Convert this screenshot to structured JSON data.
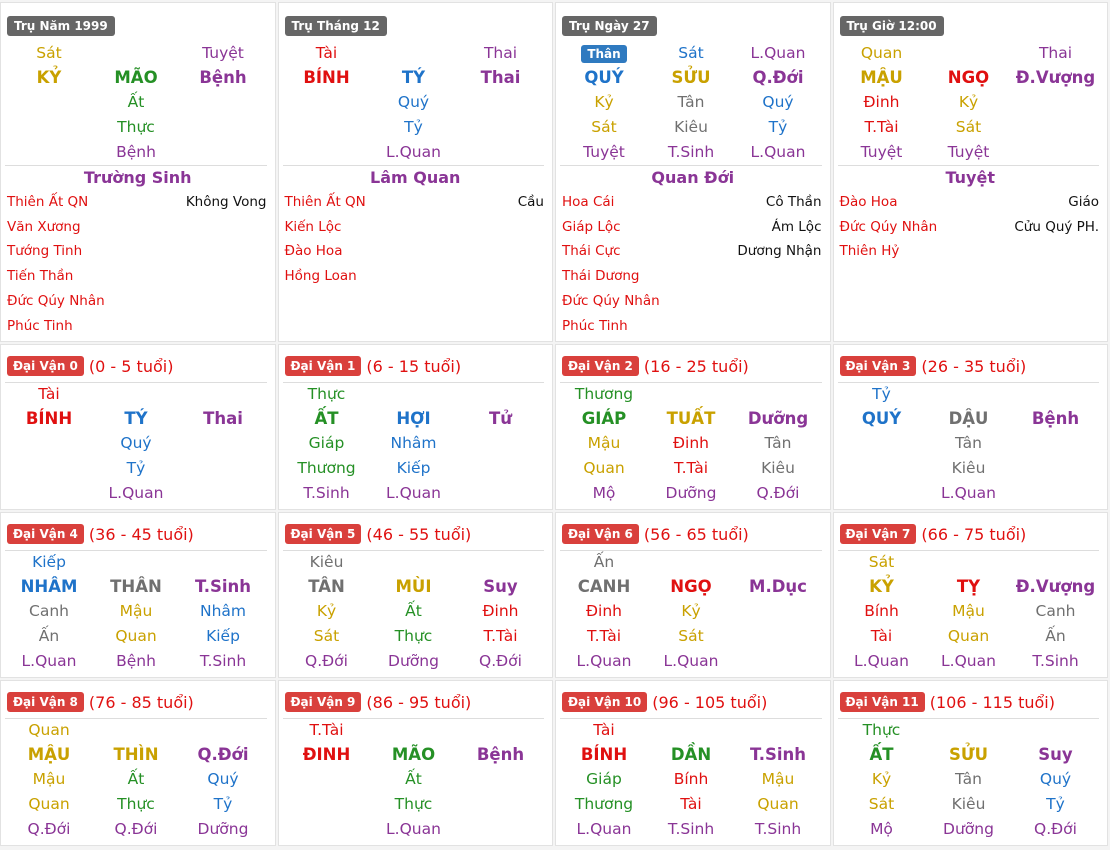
{
  "pillars": [
    {
      "label": "Trụ Năm 1999",
      "rows": [
        [
          {
            "t": "Sát",
            "c": "gold"
          },
          null,
          {
            "t": "Tuyệt",
            "c": "purple"
          }
        ],
        [
          {
            "t": "KỶ",
            "c": "gold"
          },
          {
            "t": "MÃO",
            "c": "green"
          },
          {
            "t": "Bệnh",
            "c": "purple"
          }
        ],
        [
          null,
          {
            "t": "Ất",
            "c": "green"
          },
          null
        ],
        [
          null,
          {
            "t": "Thực",
            "c": "green"
          },
          null
        ],
        [
          null,
          {
            "t": "Bệnh",
            "c": "purple"
          },
          null
        ]
      ],
      "stage": "Trường Sinh",
      "stars_left": [
        "Thiên Ất QN",
        "Văn Xương",
        "Tướng Tinh",
        "Tiến Thần",
        "Đức Qúy Nhân",
        "Phúc Tinh"
      ],
      "stars_right": [
        "Không Vong"
      ]
    },
    {
      "label": "Trụ Tháng 12",
      "rows": [
        [
          {
            "t": "Tài",
            "c": "red"
          },
          null,
          {
            "t": "Thai",
            "c": "purple"
          }
        ],
        [
          {
            "t": "BÍNH",
            "c": "red"
          },
          {
            "t": "TÝ",
            "c": "blue"
          },
          {
            "t": "Thai",
            "c": "purple"
          }
        ],
        [
          null,
          {
            "t": "Quý",
            "c": "blue"
          },
          null
        ],
        [
          null,
          {
            "t": "Tỷ",
            "c": "blue"
          },
          null
        ],
        [
          null,
          {
            "t": "L.Quan",
            "c": "purple"
          },
          null
        ]
      ],
      "stage": "Lâm Quan",
      "stars_left": [
        "Thiên Ất QN",
        "Kiến Lộc",
        "Đào Hoa",
        "Hồng Loan"
      ],
      "stars_right": [
        "Cầu"
      ]
    },
    {
      "label": "Trụ Ngày 27",
      "rows": [
        [
          {
            "t": "Thân",
            "c": "badge"
          },
          {
            "t": "Sát",
            "c": "blue"
          },
          {
            "t": "L.Quan",
            "c": "purple"
          }
        ],
        [
          {
            "t": "QUÝ",
            "c": "blue"
          },
          {
            "t": "SỬU",
            "c": "gold"
          },
          {
            "t": "Q.Đới",
            "c": "purple"
          }
        ],
        [
          {
            "t": "Kỷ",
            "c": "gold"
          },
          {
            "t": "Tân",
            "c": "gray"
          },
          {
            "t": "Quý",
            "c": "blue"
          }
        ],
        [
          {
            "t": "Sát",
            "c": "gold"
          },
          {
            "t": "Kiêu",
            "c": "gray"
          },
          {
            "t": "Tỷ",
            "c": "blue"
          }
        ],
        [
          {
            "t": "Tuyệt",
            "c": "purple"
          },
          {
            "t": "T.Sinh",
            "c": "purple"
          },
          {
            "t": "L.Quan",
            "c": "purple"
          }
        ]
      ],
      "stage": "Quan Đới",
      "stars_left": [
        "Hoa Cái",
        "Giáp Lộc",
        "Thái Cực",
        "Thái Dương",
        "Đức Qúy Nhân",
        "Phúc Tinh"
      ],
      "stars_right": [
        "Cô Thần",
        "Ám Lộc",
        "Dương Nhận"
      ]
    },
    {
      "label": "Trụ Giờ 12:00",
      "rows": [
        [
          {
            "t": "Quan",
            "c": "gold"
          },
          null,
          {
            "t": "Thai",
            "c": "purple"
          }
        ],
        [
          {
            "t": "MẬU",
            "c": "gold"
          },
          {
            "t": "NGỌ",
            "c": "red"
          },
          {
            "t": "Đ.Vượng",
            "c": "purple"
          }
        ],
        [
          {
            "t": "Đinh",
            "c": "red"
          },
          {
            "t": "Kỷ",
            "c": "gold"
          },
          null
        ],
        [
          {
            "t": "T.Tài",
            "c": "red"
          },
          {
            "t": "Sát",
            "c": "gold"
          },
          null
        ],
        [
          {
            "t": "Tuyệt",
            "c": "purple"
          },
          {
            "t": "Tuyệt",
            "c": "purple"
          },
          null
        ]
      ],
      "stage": "Tuyệt",
      "stars_left": [
        "Đào Hoa",
        "Đức Qúy Nhân",
        "Thiên Hỷ"
      ],
      "stars_right": [
        "Giáo",
        "Cửu Quý PH."
      ]
    }
  ],
  "dai_van": [
    {
      "label": "Đại Vận 0",
      "age": "(0 - 5 tuổi)",
      "rows": [
        [
          {
            "t": "Tài",
            "c": "red"
          },
          null,
          null
        ],
        [
          {
            "t": "BÍNH",
            "c": "red"
          },
          {
            "t": "TÝ",
            "c": "blue"
          },
          {
            "t": "Thai",
            "c": "purple"
          }
        ],
        [
          null,
          {
            "t": "Quý",
            "c": "blue"
          },
          null
        ],
        [
          null,
          {
            "t": "Tỷ",
            "c": "blue"
          },
          null
        ],
        [
          null,
          {
            "t": "L.Quan",
            "c": "purple"
          },
          null
        ]
      ]
    },
    {
      "label": "Đại Vận 1",
      "age": "(6 - 15 tuổi)",
      "rows": [
        [
          {
            "t": "Thực",
            "c": "green"
          },
          null,
          null
        ],
        [
          {
            "t": "ẤT",
            "c": "green"
          },
          {
            "t": "HỢI",
            "c": "blue"
          },
          {
            "t": "Tử",
            "c": "purple"
          }
        ],
        [
          {
            "t": "Giáp",
            "c": "green"
          },
          {
            "t": "Nhâm",
            "c": "blue"
          },
          null
        ],
        [
          {
            "t": "Thương",
            "c": "green"
          },
          {
            "t": "Kiếp",
            "c": "blue"
          },
          null
        ],
        [
          {
            "t": "T.Sinh",
            "c": "purple"
          },
          {
            "t": "L.Quan",
            "c": "purple"
          },
          null
        ]
      ]
    },
    {
      "label": "Đại Vận 2",
      "age": "(16 - 25 tuổi)",
      "rows": [
        [
          {
            "t": "Thương",
            "c": "green"
          },
          null,
          null
        ],
        [
          {
            "t": "GIÁP",
            "c": "green"
          },
          {
            "t": "TUẤT",
            "c": "gold"
          },
          {
            "t": "Dưỡng",
            "c": "purple"
          }
        ],
        [
          {
            "t": "Mậu",
            "c": "gold"
          },
          {
            "t": "Đinh",
            "c": "red"
          },
          {
            "t": "Tân",
            "c": "gray"
          }
        ],
        [
          {
            "t": "Quan",
            "c": "gold"
          },
          {
            "t": "T.Tài",
            "c": "red"
          },
          {
            "t": "Kiêu",
            "c": "gray"
          }
        ],
        [
          {
            "t": "Mộ",
            "c": "purple"
          },
          {
            "t": "Dưỡng",
            "c": "purple"
          },
          {
            "t": "Q.Đới",
            "c": "purple"
          }
        ]
      ]
    },
    {
      "label": "Đại Vận 3",
      "age": "(26 - 35 tuổi)",
      "rows": [
        [
          {
            "t": "Tỷ",
            "c": "blue"
          },
          null,
          null
        ],
        [
          {
            "t": "QUÝ",
            "c": "blue"
          },
          {
            "t": "DẬU",
            "c": "gray"
          },
          {
            "t": "Bệnh",
            "c": "purple"
          }
        ],
        [
          null,
          {
            "t": "Tân",
            "c": "gray"
          },
          null
        ],
        [
          null,
          {
            "t": "Kiêu",
            "c": "gray"
          },
          null
        ],
        [
          null,
          {
            "t": "L.Quan",
            "c": "purple"
          },
          null
        ]
      ]
    },
    {
      "label": "Đại Vận 4",
      "age": "(36 - 45 tuổi)",
      "rows": [
        [
          {
            "t": "Kiếp",
            "c": "blue"
          },
          null,
          null
        ],
        [
          {
            "t": "NHÂM",
            "c": "blue"
          },
          {
            "t": "THÂN",
            "c": "gray"
          },
          {
            "t": "T.Sinh",
            "c": "purple"
          }
        ],
        [
          {
            "t": "Canh",
            "c": "gray"
          },
          {
            "t": "Mậu",
            "c": "gold"
          },
          {
            "t": "Nhâm",
            "c": "blue"
          }
        ],
        [
          {
            "t": "Ấn",
            "c": "gray"
          },
          {
            "t": "Quan",
            "c": "gold"
          },
          {
            "t": "Kiếp",
            "c": "blue"
          }
        ],
        [
          {
            "t": "L.Quan",
            "c": "purple"
          },
          {
            "t": "Bệnh",
            "c": "purple"
          },
          {
            "t": "T.Sinh",
            "c": "purple"
          }
        ]
      ]
    },
    {
      "label": "Đại Vận 5",
      "age": "(46 - 55 tuổi)",
      "rows": [
        [
          {
            "t": "Kiêu",
            "c": "gray"
          },
          null,
          null
        ],
        [
          {
            "t": "TÂN",
            "c": "gray"
          },
          {
            "t": "MÙI",
            "c": "gold"
          },
          {
            "t": "Suy",
            "c": "purple"
          }
        ],
        [
          {
            "t": "Kỷ",
            "c": "gold"
          },
          {
            "t": "Ất",
            "c": "green"
          },
          {
            "t": "Đinh",
            "c": "red"
          }
        ],
        [
          {
            "t": "Sát",
            "c": "gold"
          },
          {
            "t": "Thực",
            "c": "green"
          },
          {
            "t": "T.Tài",
            "c": "red"
          }
        ],
        [
          {
            "t": "Q.Đới",
            "c": "purple"
          },
          {
            "t": "Dưỡng",
            "c": "purple"
          },
          {
            "t": "Q.Đới",
            "c": "purple"
          }
        ]
      ]
    },
    {
      "label": "Đại Vận 6",
      "age": "(56 - 65 tuổi)",
      "rows": [
        [
          {
            "t": "Ấn",
            "c": "gray"
          },
          null,
          null
        ],
        [
          {
            "t": "CANH",
            "c": "gray"
          },
          {
            "t": "NGỌ",
            "c": "red"
          },
          {
            "t": "M.Dục",
            "c": "purple"
          }
        ],
        [
          {
            "t": "Đinh",
            "c": "red"
          },
          {
            "t": "Kỷ",
            "c": "gold"
          },
          null
        ],
        [
          {
            "t": "T.Tài",
            "c": "red"
          },
          {
            "t": "Sát",
            "c": "gold"
          },
          null
        ],
        [
          {
            "t": "L.Quan",
            "c": "purple"
          },
          {
            "t": "L.Quan",
            "c": "purple"
          },
          null
        ]
      ]
    },
    {
      "label": "Đại Vận 7",
      "age": "(66 - 75 tuổi)",
      "rows": [
        [
          {
            "t": "Sát",
            "c": "gold"
          },
          null,
          null
        ],
        [
          {
            "t": "KỶ",
            "c": "gold"
          },
          {
            "t": "TỴ",
            "c": "red"
          },
          {
            "t": "Đ.Vượng",
            "c": "purple"
          }
        ],
        [
          {
            "t": "Bính",
            "c": "red"
          },
          {
            "t": "Mậu",
            "c": "gold"
          },
          {
            "t": "Canh",
            "c": "gray"
          }
        ],
        [
          {
            "t": "Tài",
            "c": "red"
          },
          {
            "t": "Quan",
            "c": "gold"
          },
          {
            "t": "Ấn",
            "c": "gray"
          }
        ],
        [
          {
            "t": "L.Quan",
            "c": "purple"
          },
          {
            "t": "L.Quan",
            "c": "purple"
          },
          {
            "t": "T.Sinh",
            "c": "purple"
          }
        ]
      ]
    },
    {
      "label": "Đại Vận 8",
      "age": "(76 - 85 tuổi)",
      "rows": [
        [
          {
            "t": "Quan",
            "c": "gold"
          },
          null,
          null
        ],
        [
          {
            "t": "MẬU",
            "c": "gold"
          },
          {
            "t": "THÌN",
            "c": "gold"
          },
          {
            "t": "Q.Đới",
            "c": "purple"
          }
        ],
        [
          {
            "t": "Mậu",
            "c": "gold"
          },
          {
            "t": "Ất",
            "c": "green"
          },
          {
            "t": "Quý",
            "c": "blue"
          }
        ],
        [
          {
            "t": "Quan",
            "c": "gold"
          },
          {
            "t": "Thực",
            "c": "green"
          },
          {
            "t": "Tỷ",
            "c": "blue"
          }
        ],
        [
          {
            "t": "Q.Đới",
            "c": "purple"
          },
          {
            "t": "Q.Đới",
            "c": "purple"
          },
          {
            "t": "Dưỡng",
            "c": "purple"
          }
        ]
      ]
    },
    {
      "label": "Đại Vận 9",
      "age": "(86 - 95 tuổi)",
      "rows": [
        [
          {
            "t": "T.Tài",
            "c": "red"
          },
          null,
          null
        ],
        [
          {
            "t": "ĐINH",
            "c": "red"
          },
          {
            "t": "MÃO",
            "c": "green"
          },
          {
            "t": "Bệnh",
            "c": "purple"
          }
        ],
        [
          null,
          {
            "t": "Ất",
            "c": "green"
          },
          null
        ],
        [
          null,
          {
            "t": "Thực",
            "c": "green"
          },
          null
        ],
        [
          null,
          {
            "t": "L.Quan",
            "c": "purple"
          },
          null
        ]
      ]
    },
    {
      "label": "Đại Vận 10",
      "age": "(96 - 105 tuổi)",
      "rows": [
        [
          {
            "t": "Tài",
            "c": "red"
          },
          null,
          null
        ],
        [
          {
            "t": "BÍNH",
            "c": "red"
          },
          {
            "t": "DẦN",
            "c": "green"
          },
          {
            "t": "T.Sinh",
            "c": "purple"
          }
        ],
        [
          {
            "t": "Giáp",
            "c": "green"
          },
          {
            "t": "Bính",
            "c": "red"
          },
          {
            "t": "Mậu",
            "c": "gold"
          }
        ],
        [
          {
            "t": "Thương",
            "c": "green"
          },
          {
            "t": "Tài",
            "c": "red"
          },
          {
            "t": "Quan",
            "c": "gold"
          }
        ],
        [
          {
            "t": "L.Quan",
            "c": "purple"
          },
          {
            "t": "T.Sinh",
            "c": "purple"
          },
          {
            "t": "T.Sinh",
            "c": "purple"
          }
        ]
      ]
    },
    {
      "label": "Đại Vận 11",
      "age": "(106 - 115 tuổi)",
      "rows": [
        [
          {
            "t": "Thực",
            "c": "green"
          },
          null,
          null
        ],
        [
          {
            "t": "ẤT",
            "c": "green"
          },
          {
            "t": "SỬU",
            "c": "gold"
          },
          {
            "t": "Suy",
            "c": "purple"
          }
        ],
        [
          {
            "t": "Kỷ",
            "c": "gold"
          },
          {
            "t": "Tân",
            "c": "gray"
          },
          {
            "t": "Quý",
            "c": "blue"
          }
        ],
        [
          {
            "t": "Sát",
            "c": "gold"
          },
          {
            "t": "Kiêu",
            "c": "gray"
          },
          {
            "t": "Tỷ",
            "c": "blue"
          }
        ],
        [
          {
            "t": "Mộ",
            "c": "purple"
          },
          {
            "t": "Dưỡng",
            "c": "purple"
          },
          {
            "t": "Q.Đới",
            "c": "purple"
          }
        ]
      ]
    }
  ]
}
